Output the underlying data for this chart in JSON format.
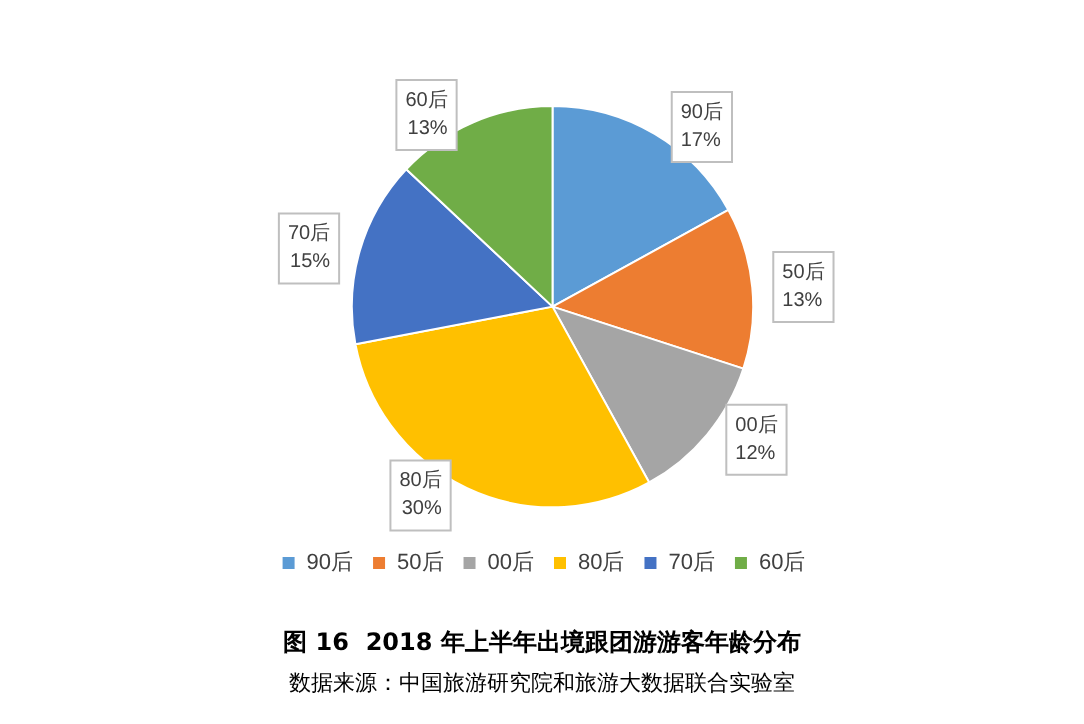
{
  "chart_data": {
    "type": "pie",
    "title": "图 16  2018 年上半年出境跟团游游客年龄分布",
    "annotations": [
      "数据来源：中国旅游研究院和旅游大数据联合实验室"
    ],
    "categories": [
      "90后",
      "50后",
      "00后",
      "80后",
      "70后",
      "60后"
    ],
    "values": [
      17,
      13,
      12,
      30,
      15,
      13
    ],
    "value_labels": [
      "17%",
      "13%",
      "12%",
      "30%",
      "15%",
      "13%"
    ],
    "colors": [
      "#5b9bd5",
      "#ed7d31",
      "#a5a5a5",
      "#ffc000",
      "#4472c4",
      "#70ad47"
    ],
    "legend": "bottom"
  }
}
